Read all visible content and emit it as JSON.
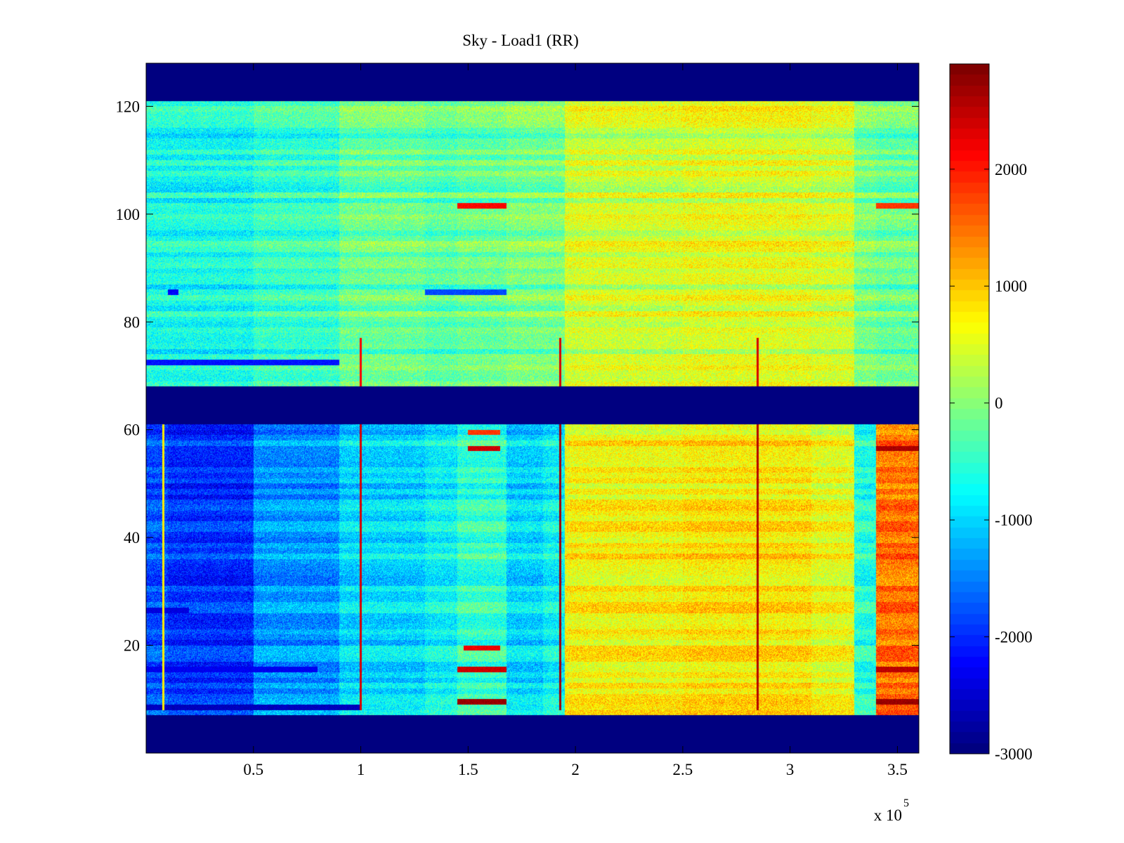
{
  "chart_data": {
    "type": "heatmap",
    "title": "Sky - Load1 (RR)",
    "xlabel": "",
    "ylabel": "",
    "x_exponent_label": "x 10",
    "x_exponent_power": "5",
    "xlim": [
      0,
      360000
    ],
    "ylim": [
      0,
      128
    ],
    "xticks": [
      50000,
      100000,
      150000,
      200000,
      250000,
      300000,
      350000
    ],
    "xtick_labels": [
      "0.5",
      "1",
      "1.5",
      "2",
      "2.5",
      "3",
      "3.5"
    ],
    "yticks": [
      20,
      40,
      60,
      80,
      100,
      120
    ],
    "ytick_labels": [
      "20",
      "40",
      "60",
      "80",
      "100",
      "120"
    ],
    "colormap": "jet",
    "clim": [
      -3000,
      2900
    ],
    "colorbar_ticks": [
      -3000,
      -2000,
      -1000,
      0,
      1000,
      2000
    ],
    "colorbar_labels": [
      "-3000",
      "-2000",
      "-1000",
      "0",
      "1000",
      "2000"
    ],
    "masked_channel_ranges": [
      [
        0,
        7
      ],
      [
        61,
        68
      ],
      [
        121,
        128
      ]
    ],
    "masked_value": -3000,
    "x_bands_start": [
      0,
      10000,
      50000,
      90000,
      130000,
      145000,
      168000,
      185000,
      195000,
      250000,
      310000,
      330000,
      340000
    ],
    "band_offset_upper": [
      -700,
      -700,
      -500,
      -200,
      -300,
      -200,
      -100,
      -100,
      400,
      500,
      400,
      -100,
      -200
    ],
    "band_offset_lower": [
      -1800,
      -2000,
      -1400,
      -1000,
      -800,
      -500,
      -1000,
      -800,
      700,
      800,
      600,
      -600,
      1500
    ],
    "hot_channels": [
      {
        "channel": 9,
        "x_range": [
          145000,
          168000
        ],
        "value": 2900
      },
      {
        "channel": 9,
        "x_range": [
          340000,
          360000
        ],
        "value": 2900
      },
      {
        "channel": 15,
        "x_range": [
          145000,
          168000
        ],
        "value": 2600
      },
      {
        "channel": 15,
        "x_range": [
          340000,
          360000
        ],
        "value": 2700
      },
      {
        "channel": 19,
        "x_range": [
          148000,
          165000
        ],
        "value": 2400
      },
      {
        "channel": 56,
        "x_range": [
          150000,
          165000
        ],
        "value": 2600
      },
      {
        "channel": 56,
        "x_range": [
          340000,
          360000
        ],
        "value": 2800
      },
      {
        "channel": 59,
        "x_range": [
          150000,
          165000
        ],
        "value": 2000
      },
      {
        "channel": 101,
        "x_range": [
          145000,
          168000
        ],
        "value": 2300
      },
      {
        "channel": 101,
        "x_range": [
          340000,
          360000
        ],
        "value": 2000
      }
    ],
    "cold_channels": [
      {
        "channel": 8,
        "x_range": [
          0,
          100000
        ],
        "value": -2800
      },
      {
        "channel": 15,
        "x_range": [
          0,
          80000
        ],
        "value": -2500
      },
      {
        "channel": 26,
        "x_range": [
          0,
          20000
        ],
        "value": -2600
      },
      {
        "channel": 72,
        "x_range": [
          0,
          90000
        ],
        "value": -2300
      },
      {
        "channel": 85,
        "x_range": [
          130000,
          168000
        ],
        "value": -2000
      },
      {
        "channel": 85,
        "x_range": [
          10000,
          15000
        ],
        "value": -2400
      }
    ],
    "vertical_spikes": [
      {
        "x": 8000,
        "channels": [
          8,
          61
        ],
        "value": 800
      },
      {
        "x": 100000,
        "channels": [
          8,
          61
        ],
        "value": 2400
      },
      {
        "x": 100000,
        "channels": [
          68,
          77
        ],
        "value": 2200
      },
      {
        "x": 193000,
        "channels": [
          8,
          61
        ],
        "value": 2700
      },
      {
        "x": 193000,
        "channels": [
          68,
          77
        ],
        "value": 2400
      },
      {
        "x": 285000,
        "channels": [
          8,
          61
        ],
        "value": 2600
      },
      {
        "x": 285000,
        "channels": [
          68,
          77
        ],
        "value": 2400
      }
    ]
  }
}
